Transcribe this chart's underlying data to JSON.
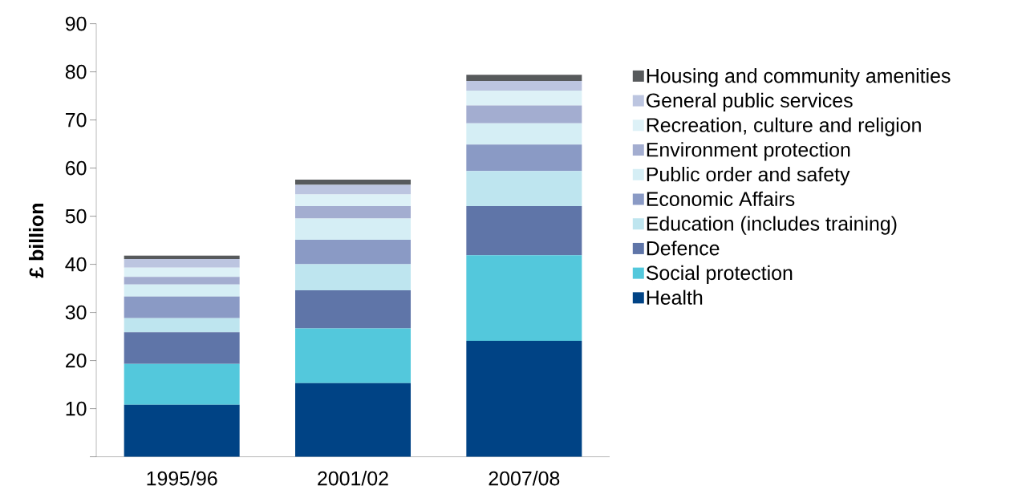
{
  "chart_data": {
    "type": "bar",
    "stacked": true,
    "ylabel": "£ billion",
    "categories": [
      "1995/96",
      "2001/02",
      "2007/08"
    ],
    "ylim": [
      0,
      90
    ],
    "yticks": [
      {
        "value": 0,
        "label": null
      },
      10,
      20,
      30,
      40,
      50,
      60,
      70,
      80,
      90
    ],
    "legend": "right",
    "series": [
      {
        "name": "Health",
        "color": "#004385",
        "values": [
          10.8,
          15.3,
          24.1
        ]
      },
      {
        "name": "Social protection",
        "color": "#53c8dc",
        "values": [
          8.5,
          11.4,
          17.8
        ]
      },
      {
        "name": "Defence",
        "color": "#5f75a8",
        "values": [
          6.6,
          7.9,
          10.2
        ]
      },
      {
        "name": "Education (includes training)",
        "color": "#bee5ef",
        "values": [
          2.9,
          5.4,
          7.3
        ]
      },
      {
        "name": "Economic Affairs",
        "color": "#8a9ac5",
        "values": [
          4.5,
          5.1,
          5.5
        ]
      },
      {
        "name": "Public order and safety",
        "color": "#d5eef5",
        "values": [
          2.5,
          4.4,
          4.4
        ]
      },
      {
        "name": "Environment protection",
        "color": "#a3add0",
        "values": [
          1.6,
          2.6,
          3.7
        ]
      },
      {
        "name": "Recreation, culture and religion",
        "color": "#ddf1f7",
        "values": [
          1.9,
          2.4,
          3.1
        ]
      },
      {
        "name": "General public services",
        "color": "#bcc5e0",
        "values": [
          1.8,
          2.0,
          2.0
        ]
      },
      {
        "name": "Housing and community amenities",
        "color": "#575a5c",
        "values": [
          0.7,
          1.1,
          1.3
        ]
      }
    ]
  }
}
